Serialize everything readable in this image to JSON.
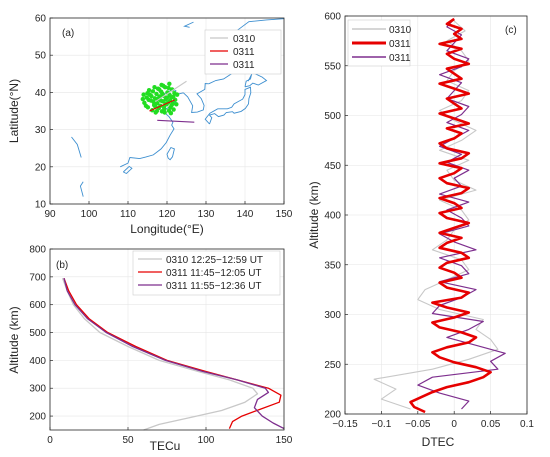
{
  "colors": {
    "axis": "#262626",
    "grid": "#e6e6e6",
    "coast": "#3d8fd0",
    "scatter": "#22dd22",
    "s0310": "#c8c8c8",
    "s0311_red": "#e60000",
    "s0311_purple": "#7e2f8e"
  },
  "chart_data": [
    {
      "id": "a",
      "type": "scatter",
      "panel_label": "(a)",
      "xlabel": "Longitude(°E)",
      "ylabel": "Latitude(°N)",
      "xlim": [
        90,
        150
      ],
      "ylim": [
        10,
        60
      ],
      "xticks": [
        "90",
        "100",
        "110",
        "120",
        "130",
        "140",
        "150"
      ],
      "yticks": [
        "10",
        "20",
        "30",
        "40",
        "50",
        "60"
      ],
      "legend": {
        "placement": "top-right",
        "entries": [
          "0310",
          "0311",
          "0311"
        ]
      },
      "scatter_points": [
        [
          114.2,
          37.2
        ],
        [
          114.8,
          38.6
        ],
        [
          115.1,
          36.0
        ],
        [
          115.6,
          39.4
        ],
        [
          115.9,
          37.8
        ],
        [
          116.2,
          35.2
        ],
        [
          116.4,
          40.3
        ],
        [
          116.7,
          36.6
        ],
        [
          116.9,
          38.4
        ],
        [
          117.1,
          34.6
        ],
        [
          117.3,
          39.6
        ],
        [
          117.5,
          37.1
        ],
        [
          117.7,
          41.0
        ],
        [
          117.9,
          35.8
        ],
        [
          118.1,
          38.9
        ],
        [
          118.3,
          36.4
        ],
        [
          118.5,
          40.2
        ],
        [
          118.7,
          34.9
        ],
        [
          118.9,
          37.6
        ],
        [
          119.1,
          39.1
        ],
        [
          119.3,
          35.6
        ],
        [
          119.5,
          41.4
        ],
        [
          119.7,
          38.2
        ],
        [
          119.9,
          36.8
        ],
        [
          120.1,
          40.0
        ],
        [
          120.3,
          37.3
        ],
        [
          120.5,
          35.1
        ],
        [
          120.7,
          39.3
        ],
        [
          120.9,
          36.0
        ],
        [
          121.1,
          38.6
        ],
        [
          121.3,
          40.8
        ],
        [
          121.5,
          37.0
        ],
        [
          121.7,
          35.4
        ],
        [
          121.9,
          39.8
        ],
        [
          122.1,
          38.0
        ],
        [
          115.3,
          38.0
        ],
        [
          116.0,
          39.0
        ],
        [
          116.6,
          37.4
        ],
        [
          117.0,
          36.2
        ],
        [
          117.6,
          38.2
        ],
        [
          118.0,
          40.8
        ],
        [
          118.4,
          37.8
        ],
        [
          118.8,
          39.7
        ],
        [
          119.2,
          36.2
        ],
        [
          119.6,
          37.0
        ],
        [
          120.0,
          38.6
        ],
        [
          120.4,
          41.2
        ],
        [
          120.8,
          37.8
        ],
        [
          121.2,
          36.6
        ],
        [
          121.6,
          38.8
        ],
        [
          114.6,
          36.4
        ],
        [
          115.0,
          39.8
        ],
        [
          116.8,
          41.4
        ],
        [
          118.6,
          42.0
        ],
        [
          120.6,
          42.3
        ],
        [
          117.4,
          35.0
        ],
        [
          119.4,
          34.6
        ],
        [
          121.0,
          34.4
        ],
        [
          122.4,
          36.8
        ],
        [
          122.6,
          39.4
        ],
        [
          113.8,
          38.2
        ],
        [
          114.0,
          39.4
        ],
        [
          115.4,
          40.6
        ],
        [
          119.0,
          41.8
        ]
      ],
      "tracks": [
        {
          "name": "0310",
          "x": [
            117.0,
            125.0
          ],
          "y": [
            37.5,
            43.0
          ]
        },
        {
          "name": "0311",
          "x": [
            115.5,
            122.0
          ],
          "y": [
            35.0,
            38.0
          ]
        },
        {
          "name": "0311",
          "x": [
            117.5,
            127.0
          ],
          "y": [
            32.5,
            32.0
          ]
        }
      ],
      "coastline_note": "East Asia coastline (China, Korea, Japan)"
    },
    {
      "id": "b",
      "type": "line",
      "panel_label": "(b)",
      "xlabel": "TECu",
      "ylabel": "Altitude (km)",
      "xlim": [
        0,
        150
      ],
      "ylim": [
        150,
        800
      ],
      "xticks": [
        "0",
        "50",
        "100",
        "150"
      ],
      "yticks": [
        "200",
        "300",
        "400",
        "500",
        "600",
        "700",
        "800"
      ],
      "legend": {
        "placement": "top-right",
        "entries": [
          "0310 12:25−12:59 UT",
          "0311 11:45−12:05 UT",
          "0311 11:55−12:36 UT"
        ]
      },
      "series": [
        {
          "name": "0310 12:25−12:59 UT",
          "points": [
            [
              60,
              150
            ],
            [
              70,
              170
            ],
            [
              90,
              195
            ],
            [
              110,
              220
            ],
            [
              125,
              250
            ],
            [
              133,
              280
            ],
            [
              130,
              300
            ],
            [
              115,
              330
            ],
            [
              95,
              360
            ],
            [
              70,
              400
            ],
            [
              50,
              450
            ],
            [
              32,
              500
            ],
            [
              22,
              550
            ],
            [
              15,
              600
            ],
            [
              11,
              650
            ],
            [
              8,
              695
            ]
          ]
        },
        {
          "name": "0311 11:45−12:05 UT",
          "points": [
            [
              115,
              155
            ],
            [
              117,
              180
            ],
            [
              123,
              200
            ],
            [
              135,
              225
            ],
            [
              147,
              250
            ],
            [
              148,
              275
            ],
            [
              140,
              300
            ],
            [
              120,
              330
            ],
            [
              100,
              360
            ],
            [
              75,
              400
            ],
            [
              55,
              450
            ],
            [
              37,
              500
            ],
            [
              25,
              550
            ],
            [
              17,
              600
            ],
            [
              12,
              650
            ],
            [
              9,
              695
            ]
          ]
        },
        {
          "name": "0311 11:55−12:36 UT",
          "points": [
            [
              150,
              155
            ],
            [
              143,
              175
            ],
            [
              136,
              200
            ],
            [
              131,
              230
            ],
            [
              133,
              260
            ],
            [
              140,
              285
            ],
            [
              138,
              300
            ],
            [
              120,
              330
            ],
            [
              98,
              360
            ],
            [
              74,
              400
            ],
            [
              53,
              450
            ],
            [
              36,
              500
            ],
            [
              24,
              550
            ],
            [
              16,
              600
            ],
            [
              11,
              650
            ],
            [
              9,
              695
            ]
          ]
        }
      ]
    },
    {
      "id": "c",
      "type": "line",
      "panel_label": "(c)",
      "xlabel": "DTEC",
      "ylabel": "Altitude (km)",
      "xlim": [
        -0.15,
        0.1
      ],
      "ylim": [
        200,
        600
      ],
      "xticks": [
        "−0.15",
        "−0.1",
        "−0.05",
        "0",
        "0.05",
        "0.1"
      ],
      "yticks": [
        "200",
        "250",
        "300",
        "350",
        "400",
        "450",
        "500",
        "550",
        "600"
      ],
      "legend": {
        "placement": "top-left",
        "entries": [
          "0310",
          "0311",
          "0311"
        ]
      },
      "series": [
        {
          "name": "0310",
          "alt_start": 205,
          "alt_step": 10,
          "values": [
            -0.06,
            -0.1,
            -0.08,
            -0.11,
            -0.03,
            0.02,
            0.06,
            0.05,
            0.03,
            0.04,
            -0.02,
            -0.05,
            -0.04,
            -0.01,
            0.02,
            0.01,
            -0.03,
            -0.01,
            0.0,
            0.02,
            0.01,
            -0.02,
            0.03,
            0.0,
            -0.01,
            0.02,
            -0.02,
            0.01,
            0.03,
            0.0,
            -0.02,
            0.01,
            0.02,
            -0.01,
            0.0,
            0.02,
            0.01,
            -0.01,
            0.015,
            0.0
          ]
        },
        {
          "name": "0311",
          "alt_start": 202,
          "alt_step": 5,
          "values": [
            -0.04,
            -0.055,
            -0.06,
            -0.045,
            -0.03,
            -0.01,
            0.02,
            0.04,
            0.05,
            0.03,
            0.0,
            -0.02,
            -0.03,
            -0.01,
            0.02,
            0.03,
            0.01,
            -0.02,
            -0.03,
            0.0,
            0.02,
            -0.01,
            -0.03,
            0.01,
            0.02,
            -0.01,
            -0.02,
            0.01,
            0.0,
            -0.02,
            -0.01,
            0.02,
            0.01,
            -0.02,
            -0.01,
            0.01,
            -0.02,
            0.0,
            0.02,
            -0.01,
            -0.02,
            0.01,
            0.0,
            -0.02,
            0.01,
            0.02,
            -0.01,
            -0.02,
            0.0,
            0.01,
            -0.02,
            0.01,
            0.02,
            -0.01,
            -0.02,
            0.0,
            0.01,
            -0.01,
            0.02,
            0.0,
            -0.02,
            0.01,
            0.0,
            -0.01,
            0.02,
            0.0,
            -0.02,
            0.01,
            0.0,
            -0.01,
            0.02,
            0.0,
            -0.01,
            0.01,
            -0.02,
            0.01,
            0.0,
            0.01,
            -0.01,
            0.0
          ]
        },
        {
          "name": "0311",
          "alt_start": 205,
          "alt_step": 8,
          "values": [
            0.01,
            0.02,
            -0.02,
            -0.05,
            -0.03,
            0.06,
            0.05,
            0.07,
            0.03,
            -0.01,
            0.02,
            0.04,
            -0.03,
            -0.02,
            0.01,
            0.03,
            -0.02,
            0.02,
            0.01,
            -0.02,
            0.03,
            0.0,
            -0.02,
            0.02,
            0.01,
            -0.01,
            0.02,
            -0.02,
            0.01,
            0.0,
            0.02,
            -0.01,
            0.01,
            -0.02,
            0.0,
            0.02,
            -0.01,
            0.01,
            0.02,
            -0.01,
            0.0,
            0.01,
            -0.02,
            0.01,
            0.02,
            -0.01,
            0.0,
            0.01,
            -0.01,
            0.0
          ]
        }
      ]
    }
  ]
}
